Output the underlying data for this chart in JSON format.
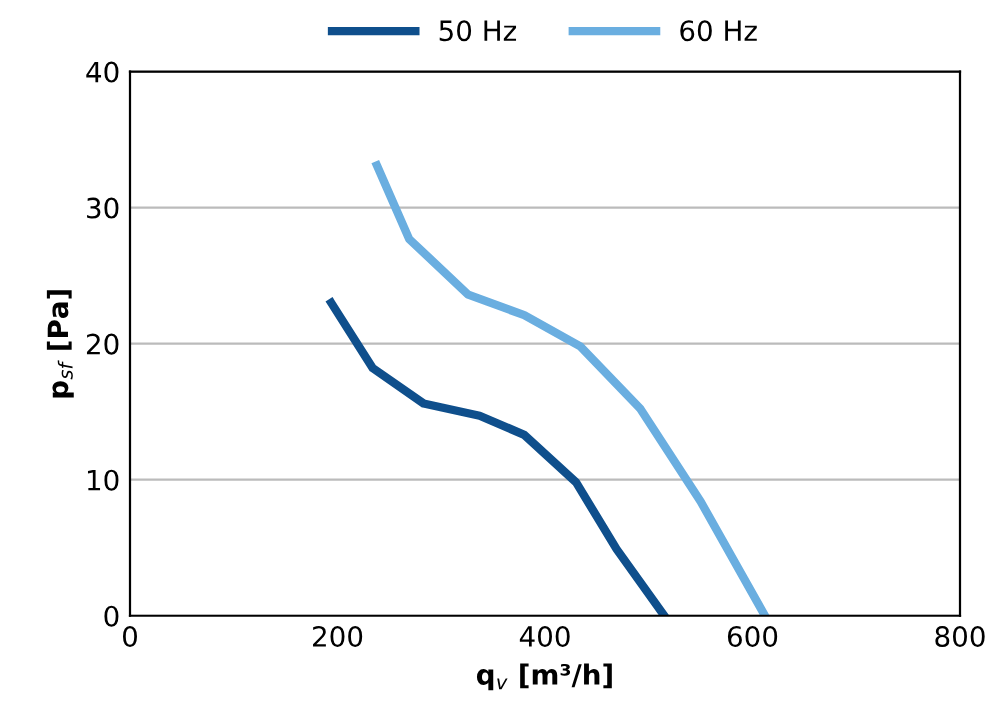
{
  "chart_data": {
    "type": "line",
    "xlabel": "q$_{v}$ [m³/h]",
    "ylabel": "p$_{sf}$ [Pa]",
    "series": [
      {
        "name": "50 Hz",
        "color": "#0f4f8c",
        "x": [
          194,
          234,
          283,
          337,
          380,
          430,
          469,
          515
        ],
        "values": [
          23,
          18.2,
          15.6,
          14.7,
          13.3,
          9.8,
          4.9,
          0
        ]
      },
      {
        "name": "60 Hz",
        "color": "#6aaee0",
        "x": [
          238,
          269,
          326,
          380,
          434,
          492,
          550,
          612
        ],
        "values": [
          33.1,
          27.7,
          23.6,
          22.1,
          19.8,
          15.2,
          8.4,
          0
        ]
      }
    ],
    "xlim": [
      0,
      800
    ],
    "xticks": [
      0,
      200,
      400,
      600,
      800
    ],
    "ylim": [
      0,
      40
    ],
    "yticks": [
      0,
      10,
      20,
      30,
      40
    ],
    "grid": "y",
    "legend": "top",
    "marker": "none",
    "line_style": "solid"
  }
}
